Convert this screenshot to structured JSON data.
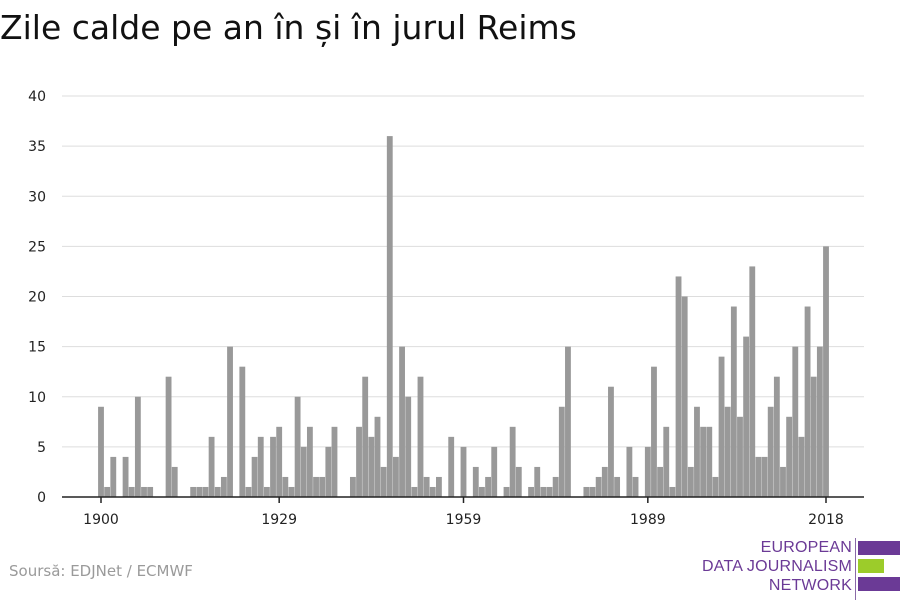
{
  "title": "Zile calde pe an în și în jurul Reims",
  "source": "Soursă: EDJNet / ECMWF",
  "logo": {
    "lines": [
      "EUROPEAN",
      "DATA JOURNALISM",
      "NETWORK"
    ],
    "colors": {
      "purple": "#6b3a96",
      "green": "#9ccc2a"
    }
  },
  "colors": {
    "bar": "#999999",
    "grid": "#dddddd",
    "axis": "#222222"
  },
  "chart_data": {
    "type": "bar",
    "title": "Zile calde pe an în și în jurul Reims",
    "xlabel": "",
    "ylabel": "",
    "ylim": [
      0,
      40
    ],
    "yticks": [
      0,
      5,
      10,
      15,
      20,
      25,
      30,
      35,
      40
    ],
    "xticks": [
      1900,
      1929,
      1959,
      1989,
      2018
    ],
    "grid": true,
    "x": [
      1900,
      1901,
      1902,
      1903,
      1904,
      1905,
      1906,
      1907,
      1908,
      1909,
      1910,
      1911,
      1912,
      1913,
      1914,
      1915,
      1916,
      1917,
      1918,
      1919,
      1920,
      1921,
      1922,
      1923,
      1924,
      1925,
      1926,
      1927,
      1928,
      1929,
      1930,
      1931,
      1932,
      1933,
      1934,
      1935,
      1936,
      1937,
      1938,
      1939,
      1940,
      1941,
      1942,
      1943,
      1944,
      1945,
      1946,
      1947,
      1948,
      1949,
      1950,
      1951,
      1952,
      1953,
      1954,
      1955,
      1956,
      1957,
      1958,
      1959,
      1960,
      1961,
      1962,
      1963,
      1964,
      1965,
      1966,
      1967,
      1968,
      1969,
      1970,
      1971,
      1972,
      1973,
      1974,
      1975,
      1976,
      1977,
      1978,
      1979,
      1980,
      1981,
      1982,
      1983,
      1984,
      1985,
      1986,
      1987,
      1988,
      1989,
      1990,
      1991,
      1992,
      1993,
      1994,
      1995,
      1996,
      1997,
      1998,
      1999,
      2000,
      2001,
      2002,
      2003,
      2004,
      2005,
      2006,
      2007,
      2008,
      2009,
      2010,
      2011,
      2012,
      2013,
      2014,
      2015,
      2016,
      2017,
      2018
    ],
    "values": [
      9,
      1,
      4,
      0,
      4,
      1,
      10,
      1,
      1,
      0,
      0,
      12,
      3,
      0,
      0,
      1,
      1,
      1,
      6,
      1,
      2,
      15,
      0,
      13,
      1,
      4,
      6,
      1,
      6,
      7,
      2,
      1,
      10,
      5,
      7,
      2,
      2,
      5,
      7,
      0,
      0,
      2,
      7,
      12,
      6,
      8,
      3,
      36,
      4,
      15,
      10,
      1,
      12,
      2,
      1,
      2,
      0,
      6,
      0,
      5,
      0,
      3,
      1,
      2,
      5,
      0,
      1,
      7,
      3,
      0,
      1,
      3,
      1,
      1,
      2,
      9,
      15,
      0,
      0,
      1,
      1,
      2,
      3,
      11,
      2,
      0,
      5,
      2,
      0,
      5,
      13,
      3,
      7,
      1,
      22,
      20,
      3,
      9,
      7,
      7,
      2,
      14,
      9,
      19,
      8,
      16,
      23,
      4,
      4,
      9,
      12,
      3,
      8,
      15,
      6,
      19,
      12,
      15,
      25
    ]
  }
}
